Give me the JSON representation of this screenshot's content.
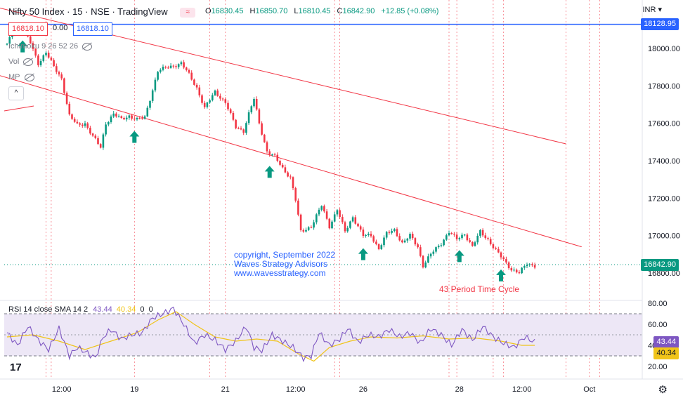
{
  "header": {
    "symbol": "Nifty 50 Index",
    "interval": "15",
    "exchange": "NSE",
    "source": "TradingView",
    "open_label": "O",
    "open": "16830.45",
    "high_label": "H",
    "high": "16850.70",
    "low_label": "L",
    "low": "16810.45",
    "close_label": "C",
    "close": "16842.90",
    "change": "+12.85 (+0.08%)",
    "bid": "16818.10",
    "spread": "0.00",
    "ask": "16818.10",
    "currency": "INR"
  },
  "indicators": {
    "ichimoku": "Ichimoku 9 26 52 26",
    "vol": "Vol",
    "mp": "MP",
    "rsi_label": "RSI 14 close SMA 14 2",
    "rsi_value": "43.44",
    "rsi_sma_value": "40.34",
    "rsi_zero_a": "0",
    "rsi_zero_b": "0"
  },
  "price_tags": {
    "level": "18128.95",
    "last": "16842.90",
    "rsi": "43.44",
    "rsi_sma": "40.34"
  },
  "annotations": {
    "copyright": "copyright, September 2022",
    "company": "Waves Strategy Advisors",
    "website": "www.wavesstrategy.com",
    "cycle": "43 Period Time Cycle"
  },
  "colors": {
    "up": "#089981",
    "down": "#f23645",
    "channel": "#f23645",
    "level_line": "#2962ff",
    "rsi_line": "#7e57c2",
    "rsi_sma": "#f0c419",
    "arrow": "#089981",
    "rsi_band": "#ede7f6"
  },
  "chart_data": {
    "type": "candlestick",
    "price_axis": {
      "ticks": [
        18000,
        17800,
        17600,
        17400,
        17200,
        17000,
        16800
      ],
      "ylim": [
        16720,
        18250
      ]
    },
    "rsi_axis": {
      "ticks": [
        80,
        60,
        40,
        20
      ],
      "ylim": [
        10,
        85
      ],
      "band": [
        30,
        70
      ],
      "mid": 50
    },
    "time_ticks": [
      "12:00",
      "19",
      "21",
      "12:00",
      "26",
      "28",
      "12:00",
      "Oct"
    ],
    "horizontal_level": 18128.95,
    "price_path": [
      [
        0,
        18020
      ],
      [
        2,
        18080
      ],
      [
        6,
        18110
      ],
      [
        9,
        18030
      ],
      [
        12,
        17920
      ],
      [
        15,
        17980
      ],
      [
        18,
        17900
      ],
      [
        21,
        17840
      ],
      [
        24,
        17640
      ],
      [
        27,
        17590
      ],
      [
        30,
        17600
      ],
      [
        33,
        17530
      ],
      [
        36,
        17470
      ],
      [
        38,
        17600
      ],
      [
        41,
        17650
      ],
      [
        44,
        17620
      ],
      [
        47,
        17640
      ],
      [
        50,
        17620
      ],
      [
        53,
        17630
      ],
      [
        58,
        17880
      ],
      [
        62,
        17900
      ],
      [
        67,
        17920
      ],
      [
        70,
        17860
      ],
      [
        73,
        17790
      ],
      [
        76,
        17680
      ],
      [
        80,
        17770
      ],
      [
        84,
        17710
      ],
      [
        88,
        17580
      ],
      [
        91,
        17560
      ],
      [
        93,
        17650
      ],
      [
        95,
        17730
      ],
      [
        97,
        17600
      ],
      [
        100,
        17450
      ],
      [
        103,
        17420
      ],
      [
        106,
        17360
      ],
      [
        109,
        17310
      ],
      [
        111,
        17190
      ],
      [
        113,
        17020
      ],
      [
        117,
        17050
      ],
      [
        121,
        17160
      ],
      [
        124,
        17050
      ],
      [
        127,
        17140
      ],
      [
        130,
        17020
      ],
      [
        133,
        17100
      ],
      [
        137,
        17000
      ],
      [
        140,
        17000
      ],
      [
        143,
        16930
      ],
      [
        146,
        17010
      ],
      [
        149,
        17030
      ],
      [
        152,
        16960
      ],
      [
        155,
        17000
      ],
      [
        158,
        16940
      ],
      [
        160,
        16840
      ],
      [
        163,
        16900
      ],
      [
        167,
        16960
      ],
      [
        170,
        17020
      ],
      [
        173,
        16980
      ],
      [
        176,
        17010
      ],
      [
        179,
        16940
      ],
      [
        182,
        17020
      ],
      [
        185,
        16980
      ],
      [
        188,
        16920
      ],
      [
        191,
        16870
      ],
      [
        194,
        16820
      ],
      [
        197,
        16800
      ],
      [
        200,
        16850
      ],
      [
        203,
        16840
      ]
    ],
    "rsi_path": [
      [
        0,
        52
      ],
      [
        4,
        40
      ],
      [
        8,
        58
      ],
      [
        12,
        45
      ],
      [
        16,
        36
      ],
      [
        20,
        56
      ],
      [
        24,
        30
      ],
      [
        27,
        38
      ],
      [
        30,
        34
      ],
      [
        34,
        28
      ],
      [
        37,
        48
      ],
      [
        40,
        55
      ],
      [
        44,
        46
      ],
      [
        48,
        50
      ],
      [
        52,
        52
      ],
      [
        56,
        66
      ],
      [
        60,
        70
      ],
      [
        64,
        75
      ],
      [
        68,
        60
      ],
      [
        72,
        42
      ],
      [
        76,
        50
      ],
      [
        80,
        45
      ],
      [
        84,
        36
      ],
      [
        88,
        44
      ],
      [
        92,
        58
      ],
      [
        95,
        38
      ],
      [
        98,
        35
      ],
      [
        102,
        50
      ],
      [
        106,
        44
      ],
      [
        110,
        38
      ],
      [
        114,
        28
      ],
      [
        117,
        30
      ],
      [
        120,
        52
      ],
      [
        124,
        40
      ],
      [
        128,
        46
      ],
      [
        131,
        56
      ],
      [
        135,
        43
      ],
      [
        139,
        50
      ],
      [
        143,
        48
      ],
      [
        147,
        55
      ],
      [
        151,
        48
      ],
      [
        155,
        52
      ],
      [
        159,
        42
      ],
      [
        163,
        56
      ],
      [
        167,
        50
      ],
      [
        171,
        40
      ],
      [
        175,
        55
      ],
      [
        179,
        45
      ],
      [
        183,
        58
      ],
      [
        187,
        48
      ],
      [
        191,
        42
      ],
      [
        195,
        38
      ],
      [
        199,
        48
      ],
      [
        203,
        43
      ]
    ],
    "rsi_sma_path": [
      [
        0,
        48
      ],
      [
        10,
        50
      ],
      [
        20,
        44
      ],
      [
        30,
        36
      ],
      [
        40,
        44
      ],
      [
        50,
        52
      ],
      [
        58,
        64
      ],
      [
        65,
        72
      ],
      [
        72,
        60
      ],
      [
        80,
        48
      ],
      [
        88,
        44
      ],
      [
        96,
        46
      ],
      [
        104,
        44
      ],
      [
        112,
        32
      ],
      [
        118,
        25
      ],
      [
        124,
        38
      ],
      [
        132,
        44
      ],
      [
        140,
        48
      ],
      [
        150,
        47
      ],
      [
        160,
        49
      ],
      [
        170,
        46
      ],
      [
        180,
        47
      ],
      [
        190,
        44
      ],
      [
        198,
        40
      ],
      [
        203,
        40
      ]
    ],
    "channel_upper": [
      [
        -10,
        18240
      ],
      [
        215,
        17490
      ]
    ],
    "channel_lower": [
      [
        -4,
        17860
      ],
      [
        221,
        16940
      ]
    ],
    "cycle_bars": [
      6,
      49,
      101,
      137,
      174,
      190
    ],
    "time_cycle_lines": [
      15,
      17,
      49,
      78,
      84,
      126,
      128,
      170,
      173,
      187,
      191,
      215,
      224,
      228
    ]
  }
}
